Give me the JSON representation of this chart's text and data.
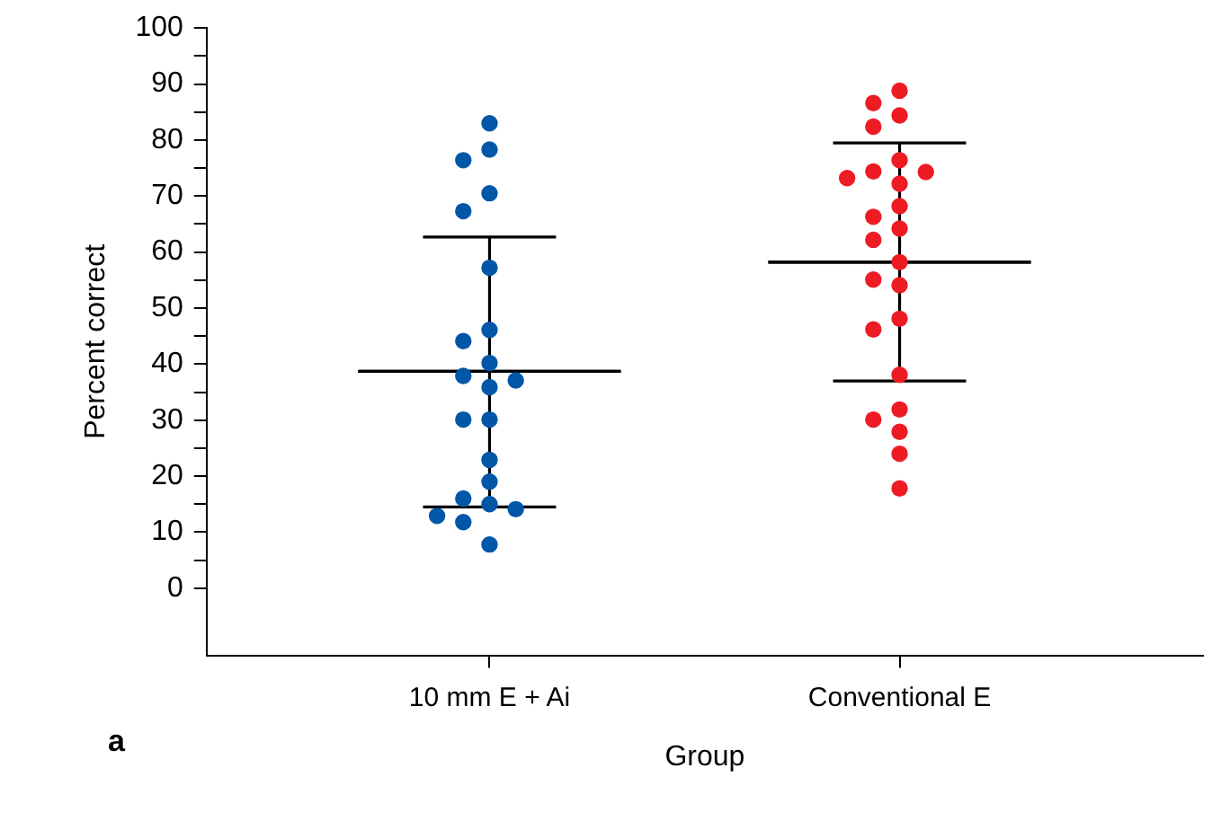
{
  "chart_data": {
    "type": "scatter",
    "xlabel": "Group",
    "ylabel": "Percent correct",
    "annotations": [
      "a"
    ],
    "categories": [
      "10 mm E + Ai",
      "Conventional E"
    ],
    "ylim": [
      -12,
      100
    ],
    "yticks": [
      0,
      {
        "value": 5,
        "label": null
      },
      10,
      {
        "value": 15,
        "label": null
      },
      20,
      {
        "value": 25,
        "label": null
      },
      30,
      {
        "value": 35,
        "label": null
      },
      40,
      {
        "value": 45,
        "label": null
      },
      50,
      {
        "value": 55,
        "label": null
      },
      60,
      {
        "value": 65,
        "label": null
      },
      70,
      {
        "value": 75,
        "label": null
      },
      80,
      {
        "value": 85,
        "label": null
      },
      90,
      {
        "value": 95,
        "label": null
      },
      100
    ],
    "legend": false,
    "grid": false,
    "marker": "circle",
    "series": [
      {
        "color": "#0057a8",
        "x": [
          "10 mm E + Ai",
          "10 mm E + Ai",
          "10 mm E + Ai",
          "10 mm E + Ai",
          "10 mm E + Ai",
          "10 mm E + Ai",
          "10 mm E + Ai",
          "10 mm E + Ai",
          "10 mm E + Ai",
          "10 mm E + Ai",
          "10 mm E + Ai",
          "10 mm E + Ai",
          "10 mm E + Ai",
          "10 mm E + Ai",
          "10 mm E + Ai",
          "10 mm E + Ai",
          "10 mm E + Ai",
          "10 mm E + Ai",
          "10 mm E + Ai",
          "10 mm E + Ai",
          "10 mm E + Ai",
          "10 mm E + Ai"
        ],
        "values": [
          83,
          78.3,
          76.4,
          70.5,
          67.3,
          57.2,
          46.1,
          44.1,
          40.2,
          37.9,
          37.1,
          35.9,
          30.1,
          30.1,
          22.9,
          19,
          16,
          15,
          14.1,
          12.9,
          11.8,
          7.8
        ]
      },
      {
        "color": "#ed1c24",
        "x": [
          "Conventional E",
          "Conventional E",
          "Conventional E",
          "Conventional E",
          "Conventional E",
          "Conventional E",
          "Conventional E",
          "Conventional E",
          "Conventional E",
          "Conventional E",
          "Conventional E",
          "Conventional E",
          "Conventional E",
          "Conventional E",
          "Conventional E",
          "Conventional E",
          "Conventional E",
          "Conventional E",
          "Conventional E",
          "Conventional E",
          "Conventional E",
          "Conventional E",
          "Conventional E",
          "Conventional E"
        ],
        "values": [
          88.8,
          86.6,
          84.4,
          82.4,
          76.4,
          74.3,
          74.4,
          73.2,
          72.2,
          68.2,
          66.3,
          64.2,
          62.2,
          58.2,
          55.1,
          54.1,
          48.1,
          46.2,
          38.1,
          31.9,
          30.1,
          27.9,
          24,
          17.8
        ]
      },
      {
        "type": "box",
        "color": "#000000",
        "boxes": [
          {
            "low": 14.5,
            "q1": 38.7,
            "median": 38.7,
            "q3": 38.7,
            "high": 62.7
          },
          {
            "low": 37,
            "q1": 58.2,
            "median": 58.2,
            "q3": 58.2,
            "high": 79.5
          }
        ]
      }
    ]
  }
}
